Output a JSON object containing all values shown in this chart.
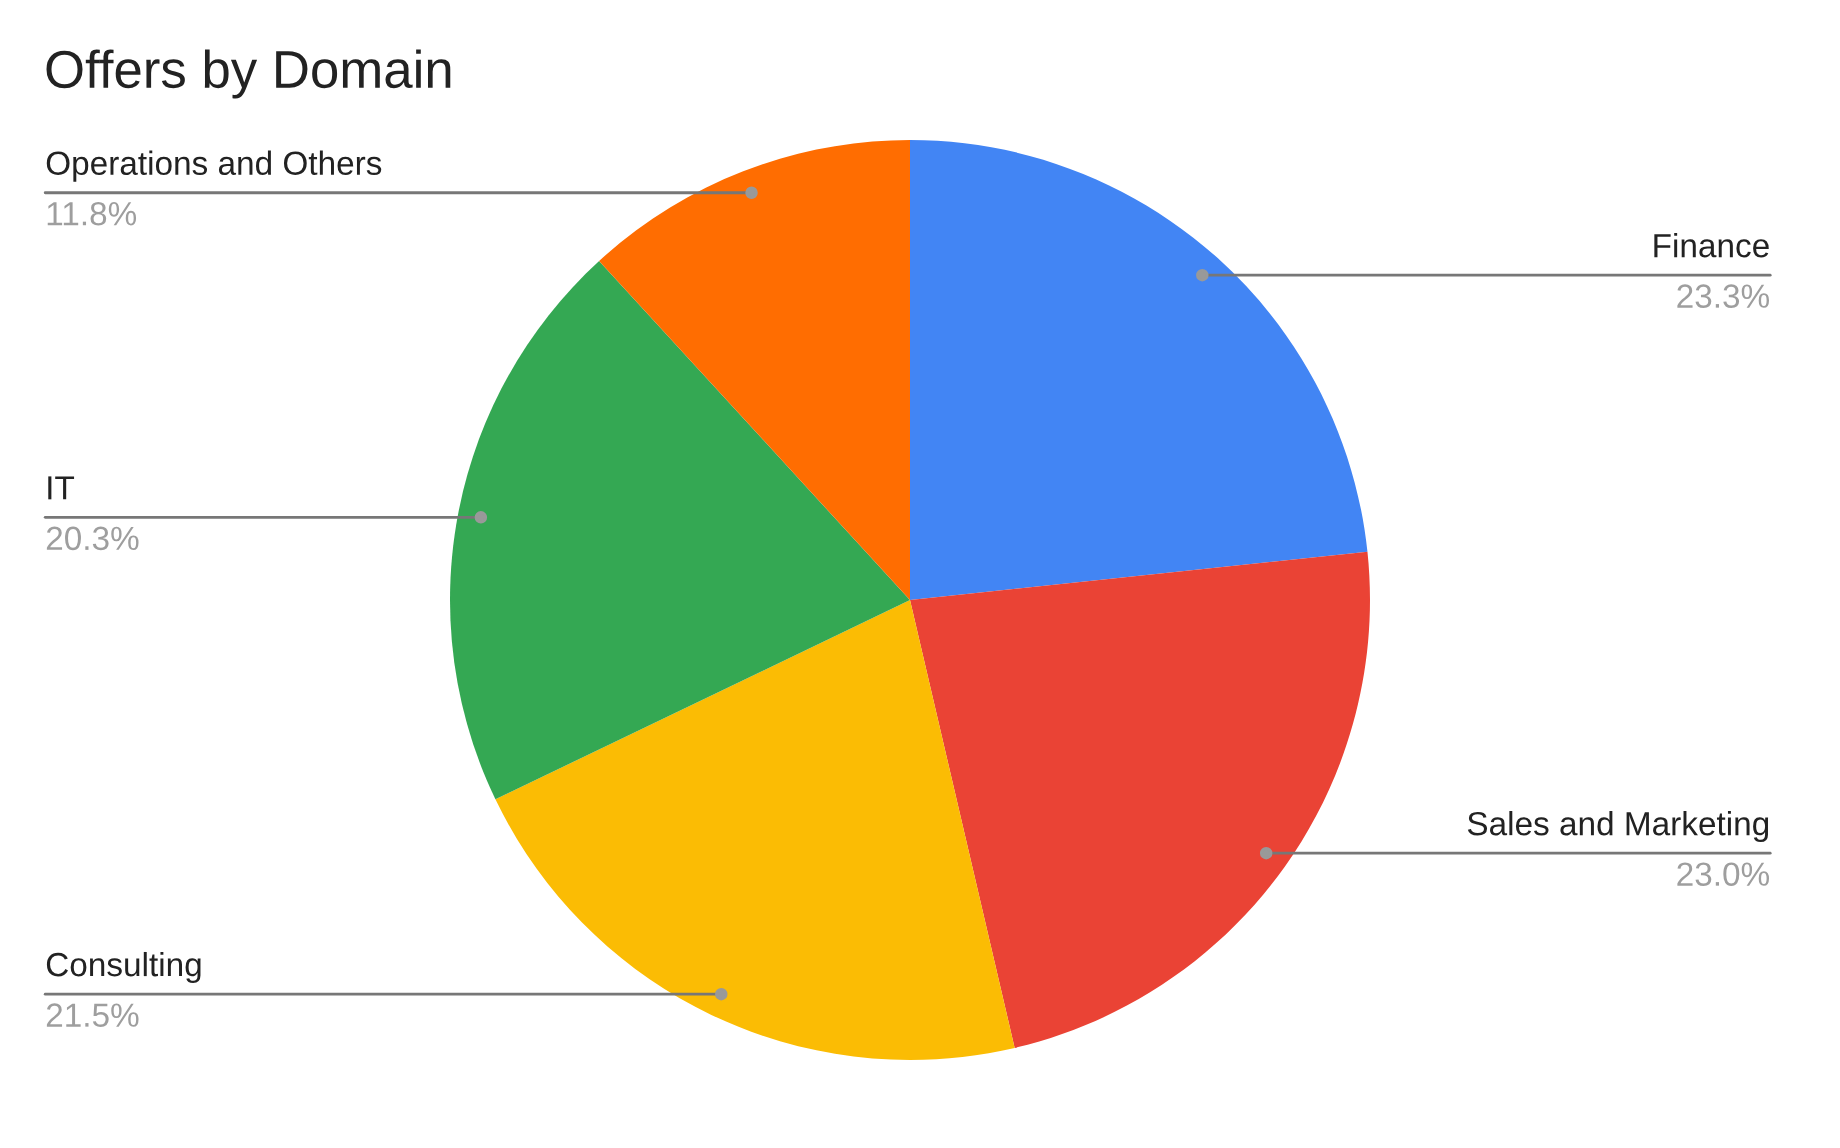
{
  "chart_data": {
    "type": "pie",
    "title": "Offers by Domain",
    "categories": [
      "Finance",
      "Sales and Marketing",
      "Consulting",
      "IT",
      "Operations and Others"
    ],
    "values": [
      23.3,
      23.0,
      21.5,
      20.3,
      11.8
    ],
    "colors": [
      "#4285f4",
      "#ea4335",
      "#fbbc04",
      "#34a853",
      "#ff6d01"
    ],
    "value_labels": [
      "23.3%",
      "23.0%",
      "21.5%",
      "20.3%",
      "11.8%"
    ]
  }
}
